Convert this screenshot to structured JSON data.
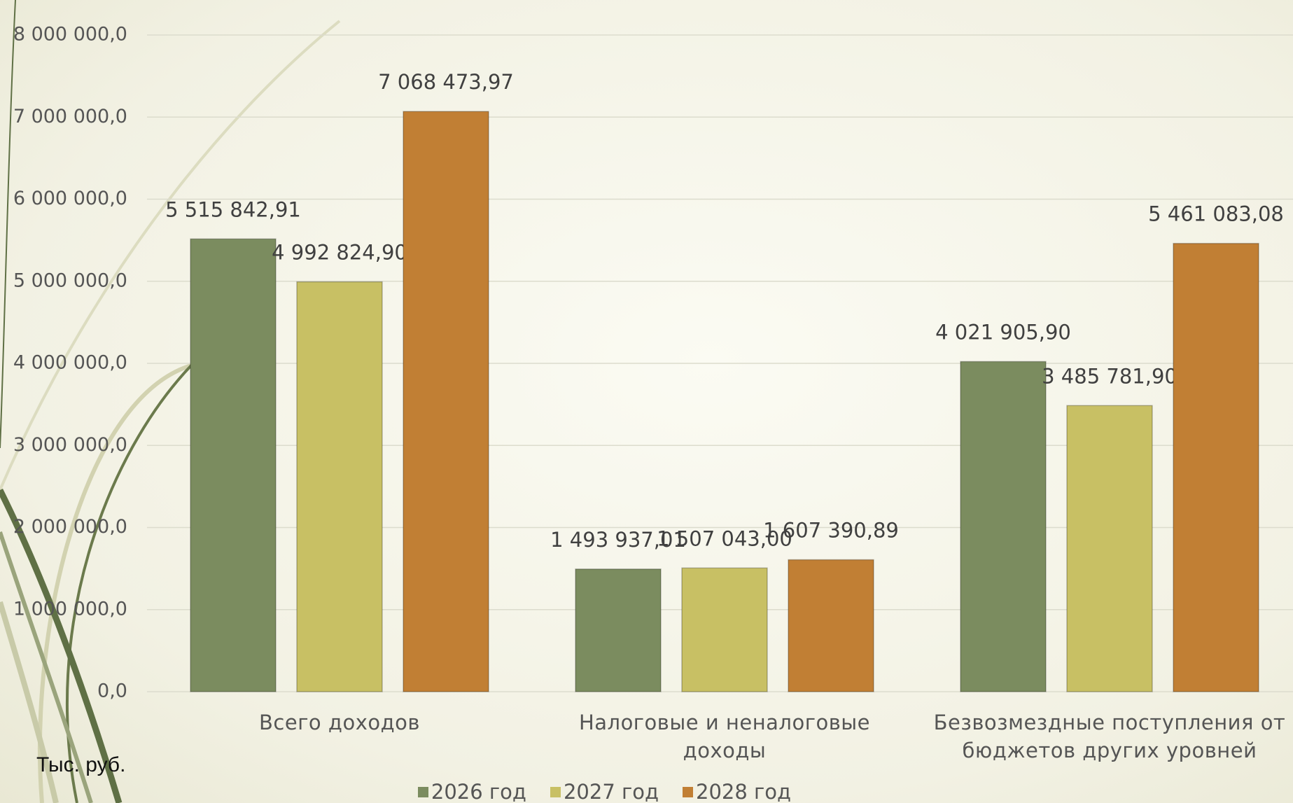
{
  "chart_data": {
    "type": "bar",
    "unit_label": "Тыс. руб.",
    "categories": [
      "Всего доходов",
      "Налоговые и неналоговые доходы",
      "Безвозмездные поступления от бюджетов других уровней"
    ],
    "series": [
      {
        "name": "2026 год",
        "color": "#7b8c5f",
        "values": [
          5515842.91,
          1493937.01,
          4021905.9
        ],
        "value_labels": [
          "5 515 842,91",
          "1 493 937,01",
          "4 021 905,90"
        ]
      },
      {
        "name": "2027 год",
        "color": "#c8c064",
        "values": [
          4992824.9,
          1507043.0,
          3485781.9
        ],
        "value_labels": [
          "4 992 824,90",
          "1 507 043,00",
          "3 485 781,90"
        ]
      },
      {
        "name": "2028 год",
        "color": "#c17f34",
        "values": [
          7068473.97,
          1607390.89,
          5461083.08
        ],
        "value_labels": [
          "7 068 473,97",
          "1 607 390,89",
          "5 461 083,08"
        ]
      }
    ],
    "ylim": [
      0,
      8000000
    ],
    "yticks": [
      {
        "value": 0,
        "label": "0,0"
      },
      {
        "value": 1000000,
        "label": "1 000 000,0"
      },
      {
        "value": 2000000,
        "label": "2 000 000,0"
      },
      {
        "value": 3000000,
        "label": "3 000 000,0"
      },
      {
        "value": 4000000,
        "label": "4 000 000,0"
      },
      {
        "value": 5000000,
        "label": "5 000 000,0"
      },
      {
        "value": 6000000,
        "label": "6 000 000,0"
      },
      {
        "value": 7000000,
        "label": "7 000 000,0"
      },
      {
        "value": 8000000,
        "label": "8 000 000,0"
      }
    ],
    "grid": true,
    "legend": "bottom"
  }
}
